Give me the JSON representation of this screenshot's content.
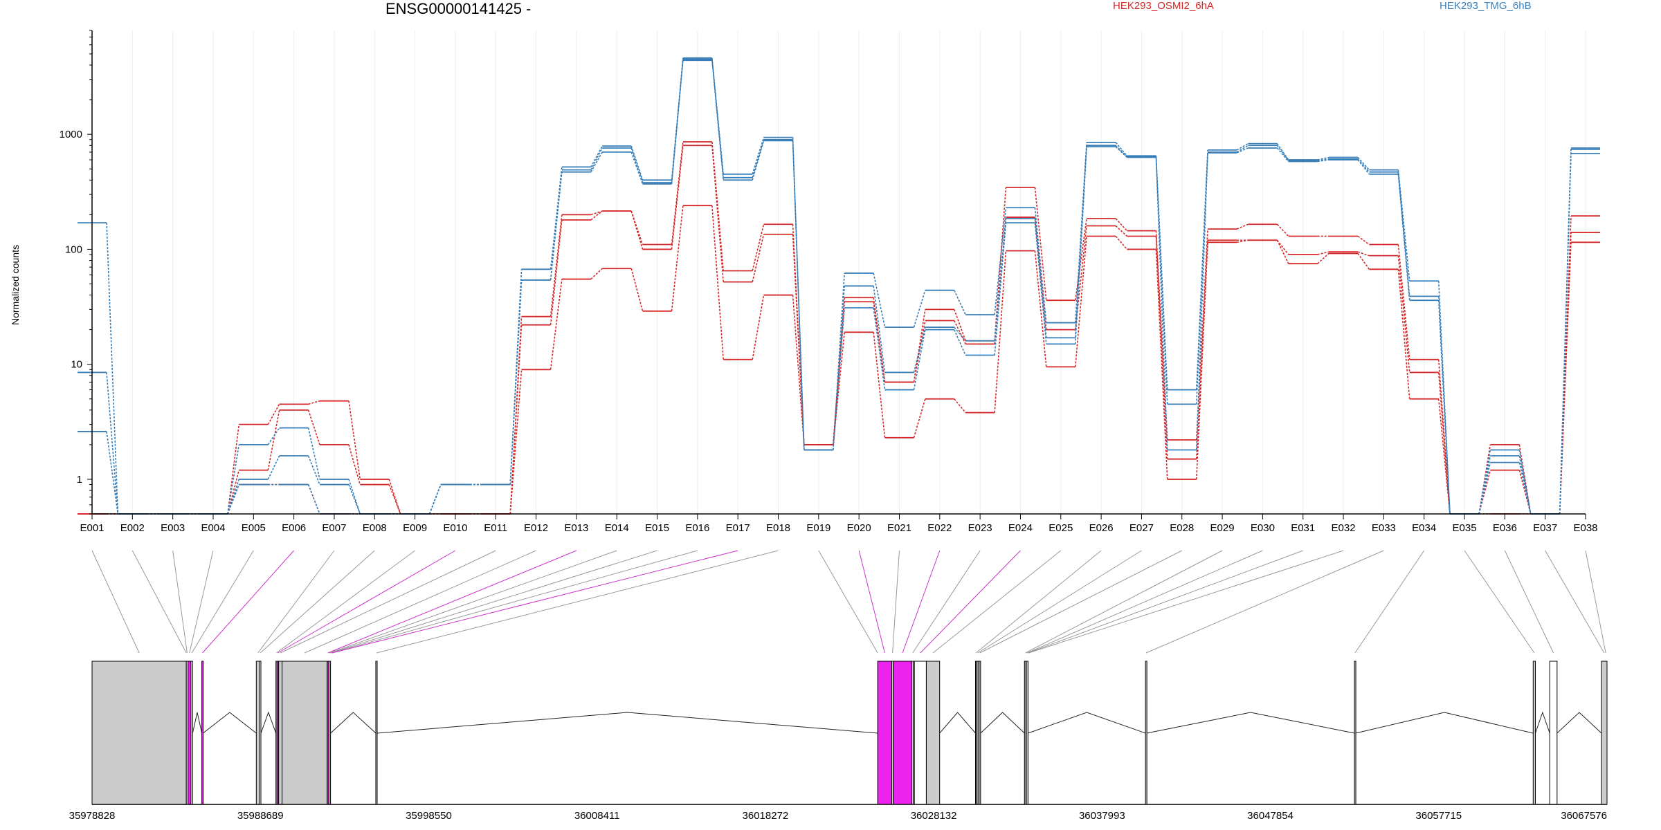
{
  "chart_data": {
    "type": "line",
    "title": "ENSG00000141425 -",
    "ylabel": "Normalized counts",
    "yscale": "log",
    "ylim": [
      0.5,
      8000
    ],
    "yticks": [
      "1",
      "10",
      "100",
      "1000"
    ],
    "yticks_values": [
      1,
      10,
      100,
      1000
    ],
    "categories": [
      "E001",
      "E002",
      "E003",
      "E004",
      "E005",
      "E006",
      "E007",
      "E008",
      "E009",
      "E010",
      "E011",
      "E012",
      "E013",
      "E014",
      "E015",
      "E016",
      "E017",
      "E018",
      "E019",
      "E020",
      "E021",
      "E022",
      "E023",
      "E024",
      "E025",
      "E026",
      "E027",
      "E028",
      "E029",
      "E030",
      "E031",
      "E032",
      "E033",
      "E034",
      "E035",
      "E036",
      "E037",
      "E038"
    ],
    "legend": [
      {
        "name": "HEK293_OSMI2_6hA",
        "color": "#d62728"
      },
      {
        "name": "HEK293_TMG_6hB",
        "color": "#377eb8"
      }
    ],
    "series": [
      {
        "group": "HEK293_OSMI2_6hA",
        "color": "#d62728",
        "values": [
          0.5,
          0.5,
          0.5,
          0.5,
          3.0,
          4.5,
          4.8,
          1.0,
          0.5,
          0.5,
          0.5,
          26,
          200,
          215,
          110,
          860,
          65,
          165,
          2.0,
          38,
          7.0,
          30,
          16,
          345,
          36,
          185,
          145,
          2.2,
          150,
          165,
          130,
          130,
          110,
          11,
          0.5,
          2.0,
          0.5,
          195
        ]
      },
      {
        "group": "HEK293_OSMI2_6hA",
        "color": "#d62728",
        "values": [
          0.5,
          0.5,
          0.5,
          0.5,
          1.2,
          4.0,
          2.0,
          0.9,
          0.5,
          0.5,
          0.5,
          22,
          180,
          215,
          100,
          800,
          52,
          135,
          2.0,
          35,
          7.0,
          24,
          15,
          190,
          20,
          160,
          130,
          1.5,
          120,
          120,
          90,
          95,
          88,
          8.5,
          0.5,
          1.2,
          0.5,
          140
        ]
      },
      {
        "group": "HEK293_OSMI2_6hA",
        "color": "#d62728",
        "values": [
          0.5,
          0.5,
          0.5,
          0.5,
          0.9,
          0.9,
          0.5,
          0.5,
          0.5,
          0.5,
          0.5,
          9.0,
          55,
          68,
          29,
          240,
          11,
          40,
          2.0,
          19,
          2.3,
          5.0,
          3.8,
          97,
          9.5,
          130,
          100,
          1.0,
          115,
          120,
          75,
          92,
          67,
          5.0,
          0.5,
          0.5,
          0.5,
          115
        ]
      },
      {
        "group": "HEK293_TMG_6hB",
        "color": "#377eb8",
        "values": [
          170,
          0.5,
          0.5,
          0.5,
          2.0,
          2.8,
          1.0,
          0.5,
          0.5,
          0.9,
          0.9,
          67,
          520,
          790,
          400,
          4600,
          450,
          940,
          1.8,
          62,
          21,
          44,
          27,
          230,
          23,
          850,
          650,
          6.0,
          730,
          830,
          600,
          630,
          490,
          53,
          0.5,
          1.8,
          0.5,
          760
        ]
      },
      {
        "group": "HEK293_TMG_6hB",
        "color": "#377eb8",
        "values": [
          8.5,
          0.5,
          0.5,
          0.5,
          1.0,
          1.6,
          0.9,
          0.5,
          0.5,
          0.9,
          0.9,
          54,
          490,
          760,
          380,
          4500,
          420,
          900,
          1.8,
          48,
          8.5,
          21,
          16,
          185,
          17,
          800,
          640,
          4.5,
          700,
          800,
          590,
          610,
          470,
          39,
          0.5,
          1.6,
          0.5,
          740
        ]
      },
      {
        "group": "HEK293_TMG_6hB",
        "color": "#377eb8",
        "values": [
          2.6,
          0.5,
          0.5,
          0.5,
          0.9,
          0.9,
          0.5,
          0.5,
          0.5,
          0.9,
          0.9,
          54,
          470,
          700,
          370,
          4400,
          400,
          880,
          1.8,
          31,
          6.0,
          20,
          12,
          170,
          15,
          780,
          630,
          1.8,
          690,
          760,
          580,
          600,
          450,
          36,
          0.5,
          1.4,
          0.5,
          680
        ]
      }
    ],
    "gene_model": {
      "coordinate_ticks": [
        "35978828",
        "35988689",
        "35998550",
        "36008411",
        "36018272",
        "36028132",
        "36037993",
        "36047854",
        "36057715",
        "36067576"
      ],
      "coordinate_tick_values": [
        35978828,
        35988689,
        35998550,
        36008411,
        36018272,
        36028132,
        36037993,
        36047854,
        36057715,
        36067576
      ],
      "xlim": [
        35978828,
        36067576
      ],
      "exon_bins": [
        {
          "start": 35978828,
          "end": 35984350,
          "fill": "#cccccc"
        },
        {
          "start": 35984350,
          "end": 35984450,
          "fill": "#ffffff"
        },
        {
          "start": 35984450,
          "end": 35984620,
          "fill": "#ee22ee"
        },
        {
          "start": 35984620,
          "end": 35984720,
          "fill": "#ffffff"
        },
        {
          "start": 35985260,
          "end": 35985330,
          "fill": "#ee22ee"
        },
        {
          "start": 35988450,
          "end": 35988640,
          "fill": "#cccccc"
        },
        {
          "start": 35988640,
          "end": 35988720,
          "fill": "#ffffff"
        },
        {
          "start": 35989600,
          "end": 35989660,
          "fill": "#cccccc"
        },
        {
          "start": 35989660,
          "end": 35989760,
          "fill": "#ee22ee"
        },
        {
          "start": 35989760,
          "end": 35989960,
          "fill": "#cccccc"
        },
        {
          "start": 35989960,
          "end": 35992600,
          "fill": "#cccccc"
        },
        {
          "start": 35992600,
          "end": 35992700,
          "fill": "#ee22ee"
        },
        {
          "start": 35992700,
          "end": 35992800,
          "fill": "#cccccc"
        },
        {
          "start": 35995450,
          "end": 35995530,
          "fill": "#cccccc"
        },
        {
          "start": 36024850,
          "end": 36025680,
          "fill": "#ee22ee"
        },
        {
          "start": 36025680,
          "end": 36025760,
          "fill": "#ffffff"
        },
        {
          "start": 36025760,
          "end": 36026850,
          "fill": "#ee22ee"
        },
        {
          "start": 36026850,
          "end": 36026950,
          "fill": "#cccccc"
        },
        {
          "start": 36027000,
          "end": 36027700,
          "fill": "#ffffff"
        },
        {
          "start": 36027700,
          "end": 36028480,
          "fill": "#cccccc"
        },
        {
          "start": 36030580,
          "end": 36030640,
          "fill": "#cccccc"
        },
        {
          "start": 36030640,
          "end": 36030790,
          "fill": "#999999"
        },
        {
          "start": 36030790,
          "end": 36030880,
          "fill": "#cccccc"
        },
        {
          "start": 36033450,
          "end": 36033560,
          "fill": "#999999"
        },
        {
          "start": 36033560,
          "end": 36033660,
          "fill": "#cccccc"
        },
        {
          "start": 36040540,
          "end": 36040610,
          "fill": "#cccccc"
        },
        {
          "start": 36052780,
          "end": 36052850,
          "fill": "#cccccc"
        },
        {
          "start": 36063250,
          "end": 36063380,
          "fill": "#cccccc"
        },
        {
          "start": 36064220,
          "end": 36064650,
          "fill": "#ffffff"
        },
        {
          "start": 36067250,
          "end": 36067576,
          "fill": "#cccccc"
        }
      ],
      "introns": [
        [
          35984720,
          35985260
        ],
        [
          35985330,
          35988450
        ],
        [
          35988720,
          35989600
        ],
        [
          35992800,
          35995450
        ],
        [
          35995530,
          36024850
        ],
        [
          36028480,
          36030580
        ],
        [
          36030880,
          36033450
        ],
        [
          36033660,
          36040540
        ],
        [
          36040610,
          36052780
        ],
        [
          36052850,
          36063250
        ],
        [
          36063380,
          36064220
        ],
        [
          36064650,
          36067250
        ]
      ],
      "bin_connectors": [
        {
          "exon": "E001",
          "pos": 35981589,
          "color": "#999999"
        },
        {
          "exon": "E002",
          "pos": 35984350,
          "color": "#999999"
        },
        {
          "exon": "E003",
          "pos": 35984400,
          "color": "#999999"
        },
        {
          "exon": "E004",
          "pos": 35984535,
          "color": "#999999"
        },
        {
          "exon": "E005",
          "pos": 35984670,
          "color": "#999999"
        },
        {
          "exon": "E006",
          "pos": 35985295,
          "color": "#cc33cc"
        },
        {
          "exon": "E007",
          "pos": 35988545,
          "color": "#999999"
        },
        {
          "exon": "E008",
          "pos": 35988680,
          "color": "#999999"
        },
        {
          "exon": "E009",
          "pos": 35989630,
          "color": "#999999"
        },
        {
          "exon": "E010",
          "pos": 35989710,
          "color": "#cc33cc"
        },
        {
          "exon": "E011",
          "pos": 35989860,
          "color": "#999999"
        },
        {
          "exon": "E012",
          "pos": 35991280,
          "color": "#999999"
        },
        {
          "exon": "E013",
          "pos": 35992650,
          "color": "#cc33cc"
        },
        {
          "exon": "E014",
          "pos": 35992750,
          "color": "#999999"
        },
        {
          "exon": "E015",
          "pos": 35992800,
          "color": "#999999"
        },
        {
          "exon": "E016",
          "pos": 35992850,
          "color": "#999999"
        },
        {
          "exon": "E017",
          "pos": 35992900,
          "color": "#cc33cc"
        },
        {
          "exon": "E018",
          "pos": 35995490,
          "color": "#999999"
        },
        {
          "exon": "E019",
          "pos": 36024850,
          "color": "#999999"
        },
        {
          "exon": "E020",
          "pos": 36025265,
          "color": "#cc33cc"
        },
        {
          "exon": "E021",
          "pos": 36025720,
          "color": "#999999"
        },
        {
          "exon": "E022",
          "pos": 36026305,
          "color": "#cc33cc"
        },
        {
          "exon": "E023",
          "pos": 36026900,
          "color": "#999999"
        },
        {
          "exon": "E024",
          "pos": 36027350,
          "color": "#cc33cc"
        },
        {
          "exon": "E025",
          "pos": 36028090,
          "color": "#999999"
        },
        {
          "exon": "E026",
          "pos": 36030610,
          "color": "#999999"
        },
        {
          "exon": "E027",
          "pos": 36030715,
          "color": "#999999"
        },
        {
          "exon": "E028",
          "pos": 36030835,
          "color": "#999999"
        },
        {
          "exon": "E029",
          "pos": 36033505,
          "color": "#999999"
        },
        {
          "exon": "E030",
          "pos": 36033610,
          "color": "#999999"
        },
        {
          "exon": "E031",
          "pos": 36033660,
          "color": "#999999"
        },
        {
          "exon": "E032",
          "pos": 36033700,
          "color": "#999999"
        },
        {
          "exon": "E033",
          "pos": 36040575,
          "color": "#999999"
        },
        {
          "exon": "E034",
          "pos": 36052815,
          "color": "#999999"
        },
        {
          "exon": "E035",
          "pos": 36063315,
          "color": "#999999"
        },
        {
          "exon": "E036",
          "pos": 36064435,
          "color": "#999999"
        },
        {
          "exon": "E037",
          "pos": 36067413,
          "color": "#999999"
        },
        {
          "exon": "E038",
          "pos": 36067500,
          "color": "#999999"
        }
      ]
    }
  }
}
